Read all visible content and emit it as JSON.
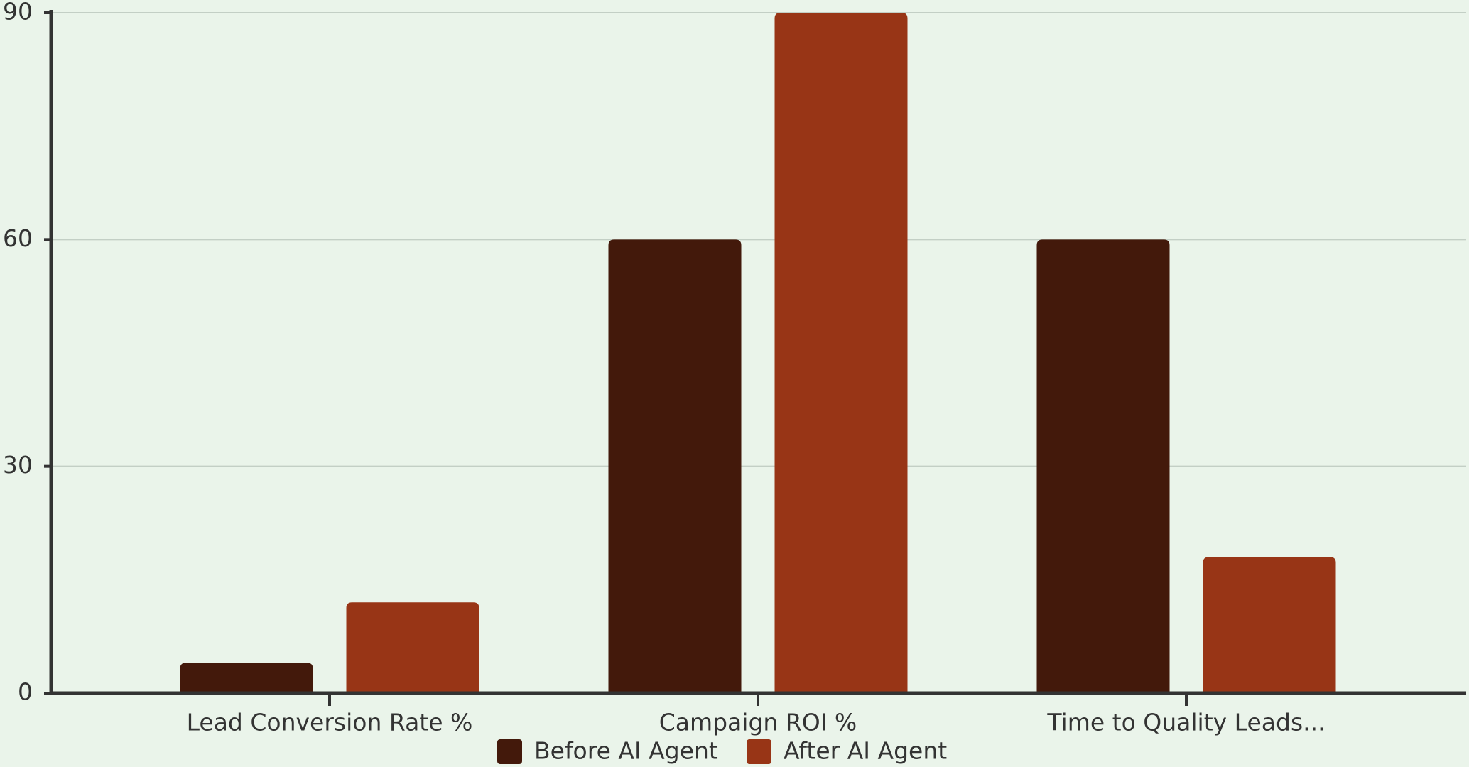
{
  "chart_data": {
    "type": "bar",
    "categories": [
      "Lead Conversion Rate %",
      "Campaign ROI %",
      "Time to Quality Leads..."
    ],
    "series": [
      {
        "name": "Before AI Agent",
        "color": "#43190b",
        "values": [
          4,
          60,
          60
        ]
      },
      {
        "name": "After AI Agent",
        "color": "#983516",
        "values": [
          12,
          90,
          18
        ]
      }
    ],
    "ylim": [
      0,
      90
    ],
    "yticks": [
      0,
      30,
      60,
      90
    ],
    "grid": true
  }
}
